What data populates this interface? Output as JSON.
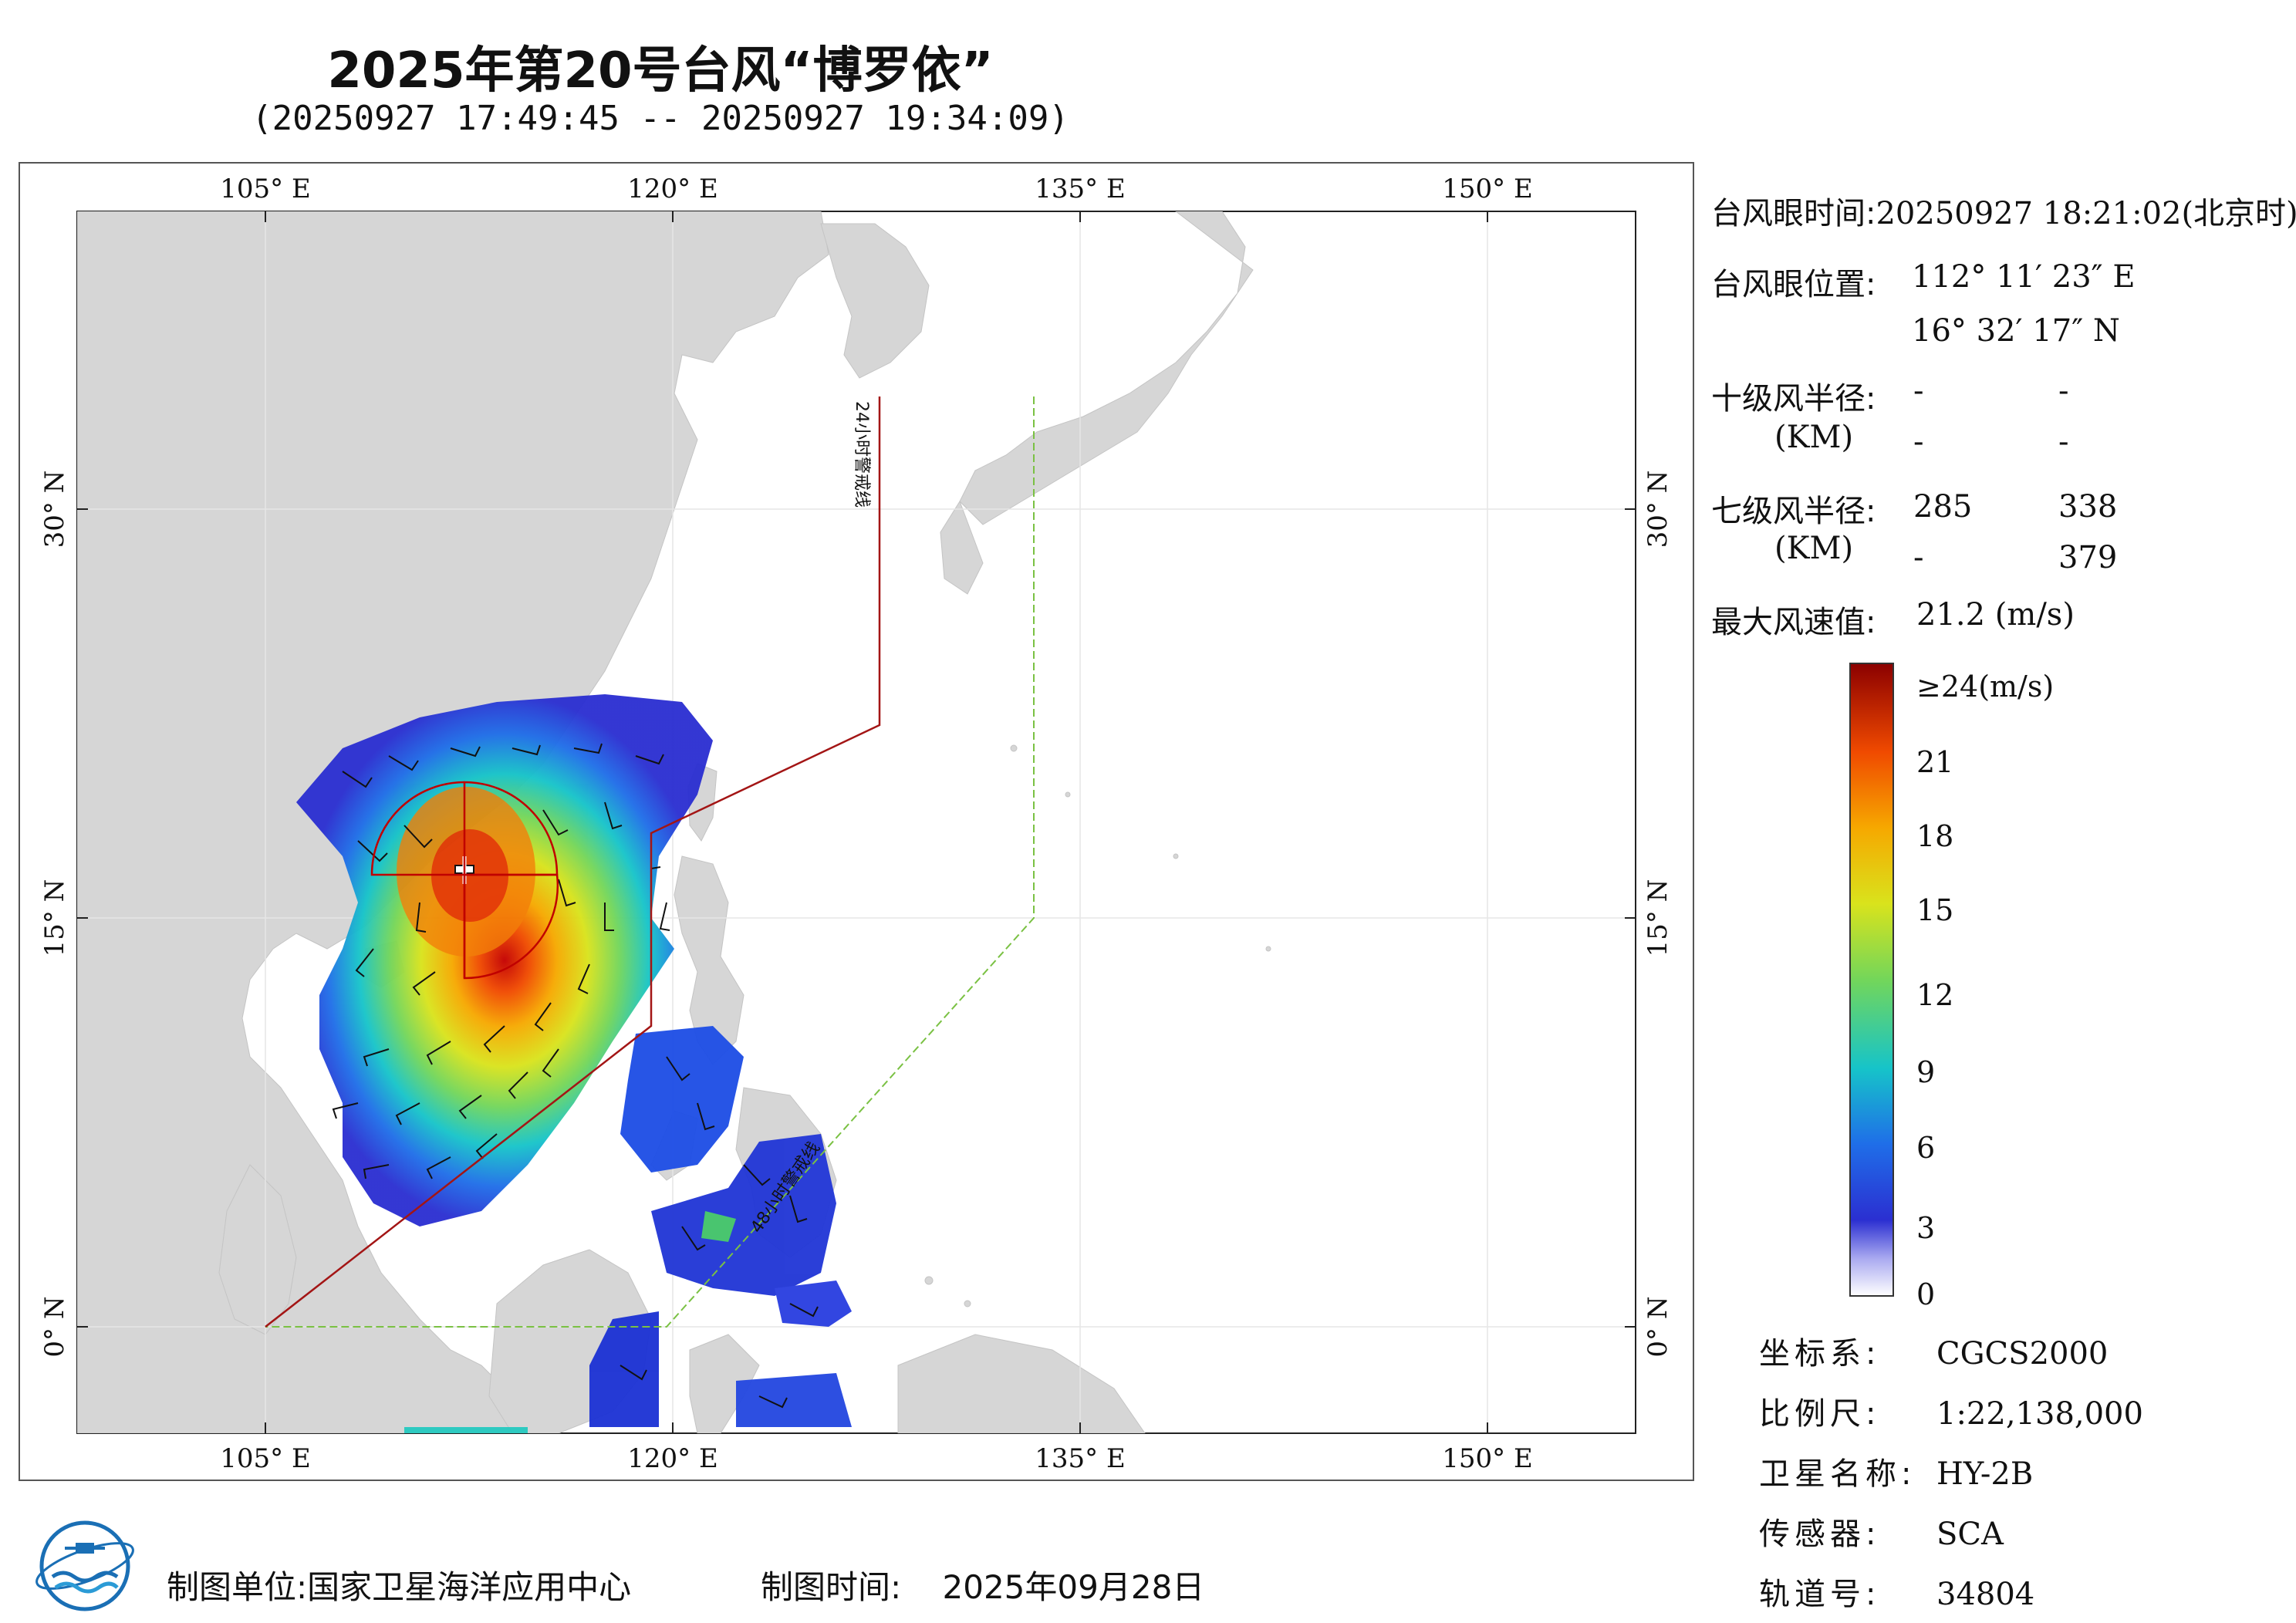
{
  "header": {
    "title": "2025年第20号台风“博罗依”",
    "subtitle": "(20250927 17:49:45 -- 20250927 19:34:09)"
  },
  "map": {
    "lon_labels_top": [
      "105° E",
      "120° E",
      "135° E",
      "150° E"
    ],
    "lon_labels_bottom": [
      "105° E",
      "120° E",
      "135° E",
      "150° E"
    ],
    "lat_labels_left": [
      "30° N",
      "15° N",
      "0° N"
    ],
    "lat_labels_right": [
      "30° N",
      "15° N",
      "0° N"
    ],
    "line_24h_label": "24小时警戒线",
    "line_48h_label": "48小时警戒线",
    "colors": {
      "land": "#d6d6d6",
      "ocean": "#ffffff",
      "warning_24h": "#a31515",
      "warning_48h": "#7ac143"
    }
  },
  "info": {
    "eye_time_label": "台风眼时间:",
    "eye_time_value": "20250927 18:21:02(北京时)",
    "eye_pos_label": "台风眼位置:",
    "eye_lon": "112° 11′ 23″ E",
    "eye_lat": "16° 32′ 17″ N",
    "r10_label": "十级风半径:",
    "km_label": "(KM)",
    "r10_values": [
      "-",
      "-",
      "-",
      "-"
    ],
    "r7_label": "七级风半径:",
    "r7_values": [
      "285",
      "338",
      "-",
      "379"
    ],
    "max_wind_label": "最大风速值:",
    "max_wind_value": "21.2  (m/s)"
  },
  "legend": {
    "labels": [
      "≥24(m/s)",
      "21",
      "18",
      "15",
      "12",
      "9",
      "6",
      "3",
      "0"
    ]
  },
  "meta": {
    "crs_label": "坐标系:",
    "crs_value": "CGCS2000",
    "scale_label": "比例尺:",
    "scale_value": "1:22,138,000",
    "sat_label": "卫星名称:",
    "sat_value": "HY-2B",
    "sensor_label": "传感器:",
    "sensor_value": "SCA",
    "orbit_label": "轨道号:",
    "orbit_value": "34804"
  },
  "footer": {
    "org_label": "制图单位:",
    "org_value": "国家卫星海洋应用中心",
    "date_label": "制图时间:",
    "date_value": "2025年09月28日"
  }
}
